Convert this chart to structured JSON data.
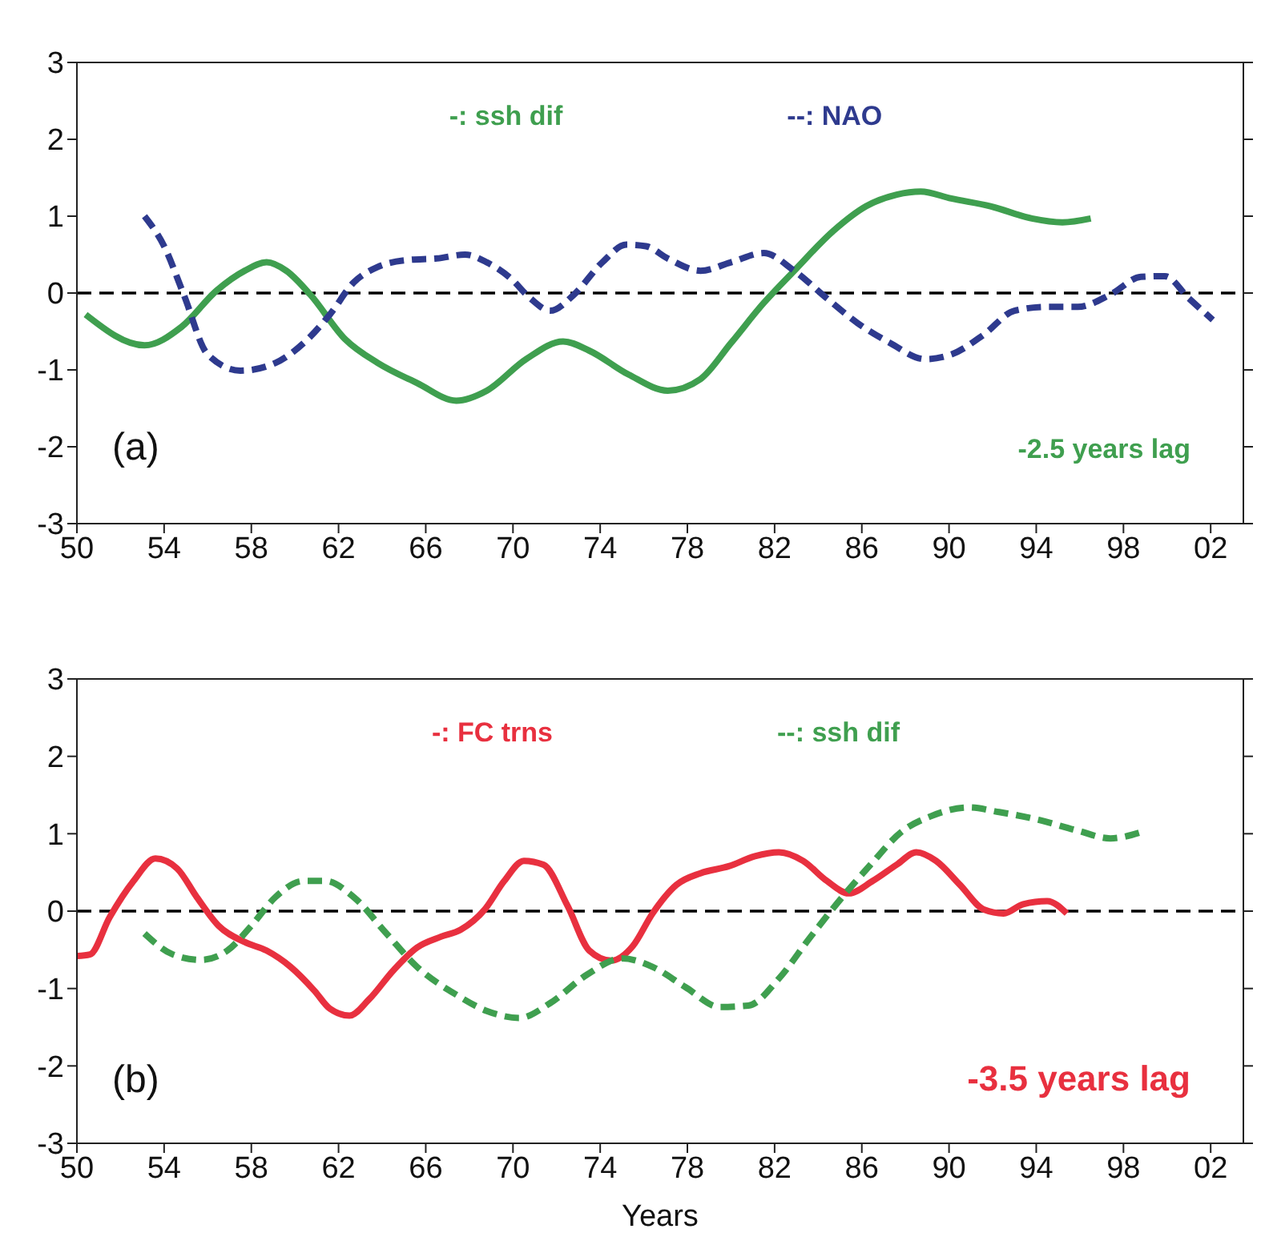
{
  "chart_data": [
    {
      "type": "line",
      "legend": "top",
      "marker": "none",
      "xlim": [
        1950,
        2003.5
      ],
      "ylim": [
        -3,
        3
      ],
      "yticks": [
        -3,
        -2,
        -1,
        0,
        1,
        2,
        3
      ],
      "xticks": [
        {
          "value": 1950,
          "label": "50"
        },
        {
          "value": 1954,
          "label": "54"
        },
        {
          "value": 1958,
          "label": "58"
        },
        {
          "value": 1962,
          "label": "62"
        },
        {
          "value": 1966,
          "label": "66"
        },
        {
          "value": 1970,
          "label": "70"
        },
        {
          "value": 1974,
          "label": "74"
        },
        {
          "value": 1978,
          "label": "78"
        },
        {
          "value": 1982,
          "label": "82"
        },
        {
          "value": 1986,
          "label": "86"
        },
        {
          "value": 1990,
          "label": "90"
        },
        {
          "value": 1994,
          "label": "94"
        },
        {
          "value": 1998,
          "label": "98"
        },
        {
          "value": 2002,
          "label": "02"
        }
      ],
      "annotations": [
        "(a)",
        "-2.5 years lag"
      ],
      "ref_lines": [
        {
          "axis": "y",
          "value": 0,
          "color": "#000000",
          "line_style": "dashed"
        }
      ],
      "series": [
        {
          "name": "-: ssh dif",
          "color": "#3f9f4f",
          "line_style": "solid",
          "x": [
            1950.4,
            1953.1,
            1954.8,
            1956.4,
            1957.7,
            1958.7,
            1959.6,
            1960.7,
            1962.3,
            1963.8,
            1965.6,
            1967.4,
            1968.8,
            1970.6,
            1972.3,
            1973.5,
            1975.3,
            1977.1,
            1978.6,
            1980.0,
            1981.5,
            1982.9,
            1984.7,
            1986.2,
            1987.6,
            1988.7,
            1990.1,
            1991.9,
            1993.8,
            1995.2,
            1996.5
          ],
          "values": [
            -0.28,
            -0.68,
            -0.44,
            0.03,
            0.29,
            0.4,
            0.29,
            -0.02,
            -0.6,
            -0.91,
            -1.17,
            -1.4,
            -1.27,
            -0.86,
            -0.63,
            -0.75,
            -1.06,
            -1.27,
            -1.12,
            -0.65,
            -0.13,
            0.29,
            0.81,
            1.13,
            1.28,
            1.32,
            1.23,
            1.13,
            0.97,
            0.92,
            0.97
          ]
        },
        {
          "name": "--: NAO",
          "color": "#2e3a8e",
          "line_style": "dashed",
          "x": [
            1953.1,
            1954.0,
            1954.9,
            1956.0,
            1957.5,
            1959.1,
            1960.4,
            1961.6,
            1962.7,
            1963.8,
            1965.2,
            1966.5,
            1967.8,
            1968.8,
            1969.9,
            1970.8,
            1971.7,
            1972.8,
            1974.1,
            1975.2,
            1976.1,
            1977.1,
            1978.6,
            1980.0,
            1981.5,
            1982.9,
            1984.4,
            1985.8,
            1987.3,
            1988.9,
            1990.1,
            1991.6,
            1993.0,
            1994.5,
            1995.9,
            1997.4,
            1998.8,
            1999.9,
            2001.0,
            2002.1
          ],
          "values": [
            1.0,
            0.61,
            -0.02,
            -0.8,
            -1.01,
            -0.91,
            -0.65,
            -0.28,
            0.14,
            0.34,
            0.43,
            0.45,
            0.5,
            0.4,
            0.19,
            -0.07,
            -0.23,
            -0.02,
            0.4,
            0.63,
            0.61,
            0.45,
            0.29,
            0.4,
            0.52,
            0.29,
            -0.07,
            -0.39,
            -0.65,
            -0.86,
            -0.8,
            -0.54,
            -0.23,
            -0.18,
            -0.18,
            -0.02,
            0.21,
            0.22,
            -0.07,
            -0.35
          ]
        }
      ]
    },
    {
      "type": "line",
      "legend": "top",
      "marker": "none",
      "xlabel": "Years",
      "xlim": [
        1950,
        2003.5
      ],
      "ylim": [
        -3,
        3
      ],
      "yticks": [
        -3,
        -2,
        -1,
        0,
        1,
        2,
        3
      ],
      "xticks": [
        {
          "value": 1950,
          "label": "50"
        },
        {
          "value": 1954,
          "label": "54"
        },
        {
          "value": 1958,
          "label": "58"
        },
        {
          "value": 1962,
          "label": "62"
        },
        {
          "value": 1966,
          "label": "66"
        },
        {
          "value": 1970,
          "label": "70"
        },
        {
          "value": 1974,
          "label": "74"
        },
        {
          "value": 1978,
          "label": "78"
        },
        {
          "value": 1982,
          "label": "82"
        },
        {
          "value": 1986,
          "label": "86"
        },
        {
          "value": 1990,
          "label": "90"
        },
        {
          "value": 1994,
          "label": "94"
        },
        {
          "value": 1998,
          "label": "98"
        },
        {
          "value": 2002,
          "label": "02"
        }
      ],
      "annotations": [
        "(b)",
        "-3.5 years lag"
      ],
      "ref_lines": [
        {
          "axis": "y",
          "value": 0,
          "color": "#000000",
          "line_style": "dashed"
        }
      ],
      "series": [
        {
          "name": "-: FC trns",
          "color": "#e8303f",
          "line_style": "solid",
          "x": [
            1950,
            1950.6,
            1951.5,
            1952.6,
            1953.6,
            1954.6,
            1955.5,
            1956.5,
            1957.7,
            1958.7,
            1959.8,
            1960.9,
            1961.6,
            1962.5,
            1963.4,
            1964.5,
            1965.6,
            1966.7,
            1967.6,
            1968.7,
            1969.6,
            1970.5,
            1971.4,
            1972.5,
            1973.5,
            1974.5,
            1975.5,
            1976.4,
            1977.5,
            1978.6,
            1979.9,
            1981.1,
            1982.2,
            1983.3,
            1984.4,
            1985.4,
            1986.5,
            1987.6,
            1988.5,
            1989.4,
            1990.5,
            1991.6,
            1992.5,
            1993.4,
            1994.5,
            1995.4
          ],
          "values": [
            -0.58,
            -0.56,
            -0.08,
            0.39,
            0.68,
            0.55,
            0.18,
            -0.19,
            -0.4,
            -0.51,
            -0.72,
            -1.03,
            -1.26,
            -1.35,
            -1.14,
            -0.77,
            -0.47,
            -0.33,
            -0.24,
            0.02,
            0.39,
            0.65,
            0.6,
            0.07,
            -0.51,
            -0.64,
            -0.45,
            -0.03,
            0.34,
            0.49,
            0.58,
            0.71,
            0.76,
            0.65,
            0.39,
            0.23,
            0.39,
            0.6,
            0.76,
            0.65,
            0.34,
            0.02,
            -0.03,
            0.09,
            0.13,
            -0.03
          ]
        },
        {
          "name": "--: ssh dif",
          "color": "#3f9f4f",
          "line_style": "dashed",
          "x": [
            1953.1,
            1954.4,
            1955.7,
            1956.9,
            1958.0,
            1959.1,
            1960.4,
            1961.4,
            1962.7,
            1964.2,
            1965.6,
            1967.4,
            1968.8,
            1970.3,
            1971.7,
            1973.4,
            1975.0,
            1976.4,
            1977.9,
            1979.5,
            1980.8,
            1982.2,
            1983.6,
            1985.1,
            1986.4,
            1987.8,
            1989.2,
            1990.9,
            1992.3,
            1994.1,
            1995.9,
            1997.4,
            1998.8
          ],
          "values": [
            -0.29,
            -0.56,
            -0.63,
            -0.51,
            -0.19,
            0.18,
            0.39,
            0.39,
            0.18,
            -0.29,
            -0.72,
            -1.08,
            -1.29,
            -1.38,
            -1.19,
            -0.82,
            -0.61,
            -0.72,
            -0.98,
            -1.24,
            -1.22,
            -0.87,
            -0.35,
            0.18,
            0.6,
            1.02,
            1.23,
            1.34,
            1.28,
            1.18,
            1.04,
            0.94,
            1.02
          ]
        }
      ]
    }
  ]
}
